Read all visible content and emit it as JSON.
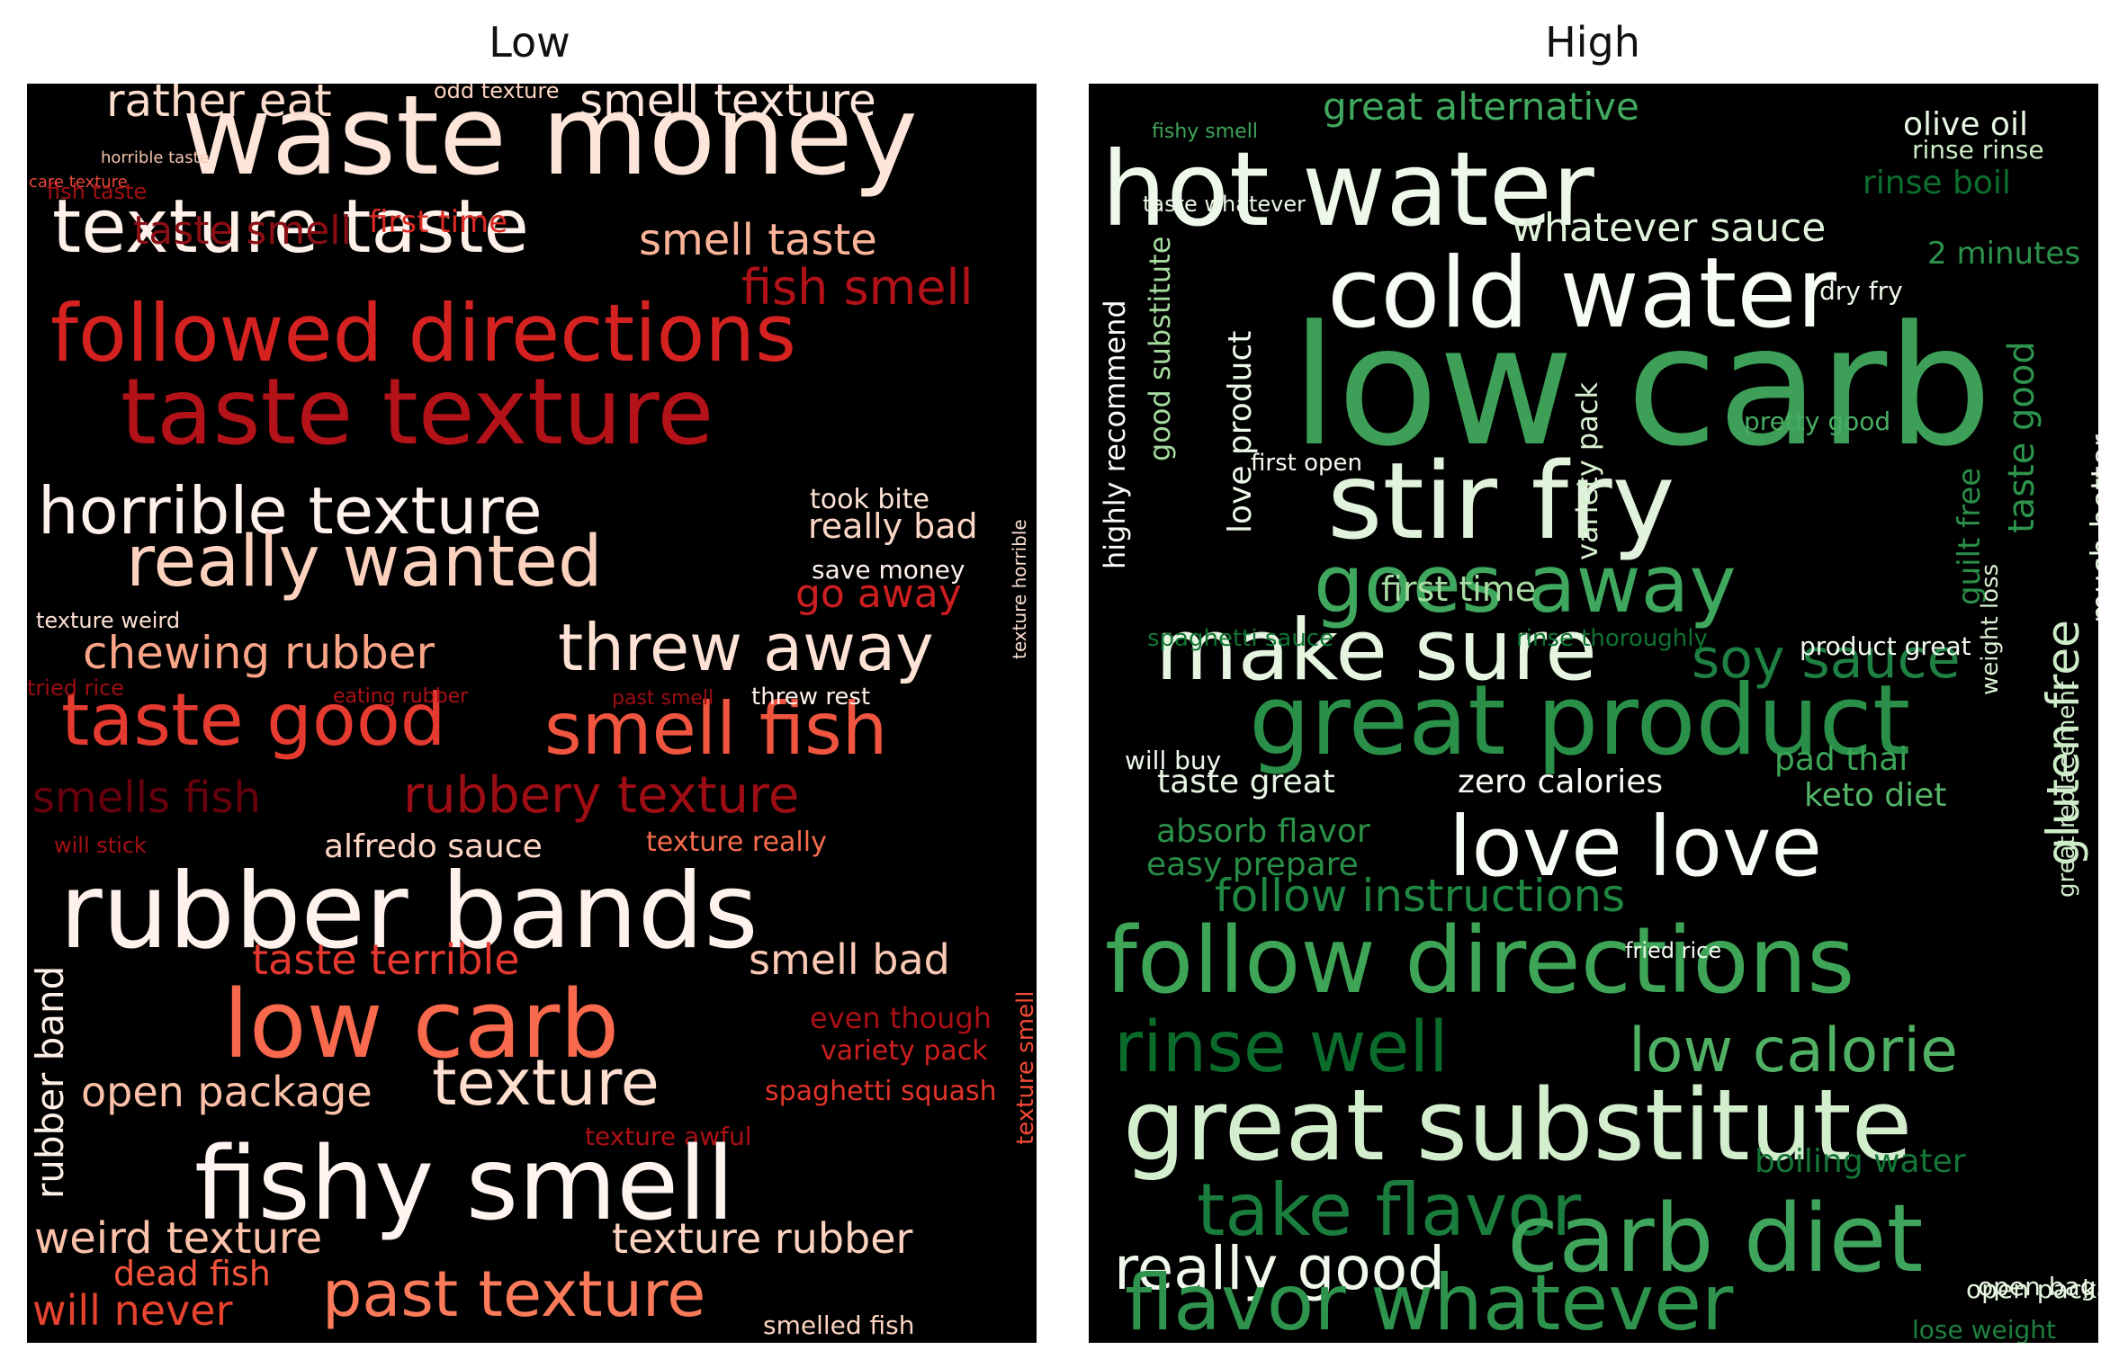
{
  "panels": [
    {
      "title": "Low"
    },
    {
      "title": "High"
    }
  ],
  "chart_data": [
    {
      "type": "wordcloud",
      "title": "Low",
      "colormap": "Reds",
      "background": "#000000",
      "words": [
        {
          "text": "waste money",
          "c": "#fde5d9"
        },
        {
          "text": "rather eat",
          "c": "#fcdccc"
        },
        {
          "text": "smell texture",
          "c": "#fde6dc"
        },
        {
          "text": "odd texture",
          "c": "#fcd3c1"
        },
        {
          "text": "texture taste",
          "c": "#fff1ea"
        },
        {
          "text": "smell taste",
          "c": "#fcb499"
        },
        {
          "text": "first time",
          "c": "#dc2a25"
        },
        {
          "text": "taste smell",
          "c": "#8a0f15"
        },
        {
          "text": "fish smell",
          "c": "#b11218"
        },
        {
          "text": "fish taste",
          "c": "#a30f15"
        },
        {
          "text": "horrible taste",
          "c": "#f4c4ae"
        },
        {
          "text": "care texture",
          "c": "#e8473b"
        },
        {
          "text": "followed directions",
          "c": "#d52221"
        },
        {
          "text": "taste texture",
          "c": "#b31218"
        },
        {
          "text": "horrible texture",
          "c": "#fff1eb"
        },
        {
          "text": "really wanted",
          "c": "#fcd2bf"
        },
        {
          "text": "took bite",
          "c": "#fde3d6"
        },
        {
          "text": "really bad",
          "c": "#fcd6c5"
        },
        {
          "text": "save money",
          "c": "#fff2ec"
        },
        {
          "text": "go away",
          "c": "#cd1e20"
        },
        {
          "text": "chewing rubber",
          "c": "#fca487"
        },
        {
          "text": "threw away",
          "c": "#fee2d5"
        },
        {
          "text": "texture weird",
          "c": "#fde2d4"
        },
        {
          "text": "taste good",
          "c": "#e43a2f"
        },
        {
          "text": "smell fish",
          "c": "#f0553f"
        },
        {
          "text": "threw rest",
          "c": "#fff0e9"
        },
        {
          "text": "eating rubber",
          "c": "#ac1117"
        },
        {
          "text": "past smell",
          "c": "#9c0d14"
        },
        {
          "text": "tried rice",
          "c": "#9b0d13"
        },
        {
          "text": "smells fish",
          "c": "#67000d"
        },
        {
          "text": "rubbery texture",
          "c": "#9d0d14"
        },
        {
          "text": "alfredo sauce",
          "c": "#fdd5c4"
        },
        {
          "text": "will stick",
          "c": "#a50f15"
        },
        {
          "text": "texture really",
          "c": "#f86c4e"
        },
        {
          "text": "rubber bands",
          "c": "#fff2ec"
        },
        {
          "text": "taste terrible",
          "c": "#e6382e"
        },
        {
          "text": "smell bad",
          "c": "#fcc9b5"
        },
        {
          "text": "low carb",
          "c": "#f8694d"
        },
        {
          "text": "even though",
          "c": "#a91016"
        },
        {
          "text": "variety pack",
          "c": "#ce1f20"
        },
        {
          "text": "open package",
          "c": "#fcc1a8"
        },
        {
          "text": "texture",
          "c": "#fedfd0"
        },
        {
          "text": "spaghetti squash",
          "c": "#e3342a"
        },
        {
          "text": "texture awful",
          "c": "#ab1016"
        },
        {
          "text": "fishy smell",
          "c": "#fff4ef"
        },
        {
          "text": "weird texture",
          "c": "#fcc2aa"
        },
        {
          "text": "texture rubber",
          "c": "#fdd2bf"
        },
        {
          "text": "dead fish",
          "c": "#f6553c"
        },
        {
          "text": "past texture",
          "c": "#fb7a5a"
        },
        {
          "text": "will never",
          "c": "#e5432f"
        },
        {
          "text": "smelled fish",
          "c": "#fcd4c1"
        },
        {
          "text": "rubber band",
          "c": "#fff0e8"
        },
        {
          "text": "texture horrible",
          "c": "#fde0d2"
        },
        {
          "text": "texture smell",
          "c": "#f34a36"
        }
      ]
    },
    {
      "type": "wordcloud",
      "title": "High",
      "colormap": "Greens",
      "background": "#000000",
      "words": [
        {
          "text": "fishy smell",
          "c": "#3fa55c"
        },
        {
          "text": "great alternative",
          "c": "#41a85f"
        },
        {
          "text": "hot water",
          "c": "#edf8ea"
        },
        {
          "text": "olive oil",
          "c": "#e9f7e5"
        },
        {
          "text": "rinse rinse",
          "c": "#cbebc5"
        },
        {
          "text": "rinse boil",
          "c": "#0d6f2e"
        },
        {
          "text": "taste whatever",
          "c": "#eaf7e6"
        },
        {
          "text": "whatever sauce",
          "c": "#dff3da"
        },
        {
          "text": "2 minutes",
          "c": "#2d924b"
        },
        {
          "text": "cold water",
          "c": "#f7fcf5"
        },
        {
          "text": "dry fry",
          "c": "#edf8ea"
        },
        {
          "text": "low carb",
          "c": "#3d9f58"
        },
        {
          "text": "stir fry",
          "c": "#e1f3dc"
        },
        {
          "text": "goes away",
          "c": "#3fa75e"
        },
        {
          "text": "make sure",
          "c": "#e5f5e0"
        },
        {
          "text": "soy sauce",
          "c": "#1e8143"
        },
        {
          "text": "product great",
          "c": "#f2faef"
        },
        {
          "text": "great product",
          "c": "#2a8f48"
        },
        {
          "text": "pretty good",
          "c": "#48ad63"
        },
        {
          "text": "gluten free",
          "c": "#cdecc7"
        },
        {
          "text": "guilt free",
          "c": "#2a8f48"
        },
        {
          "text": "taste good",
          "c": "#2e934c"
        },
        {
          "text": "taste great",
          "c": "#e8f6e3"
        },
        {
          "text": "zero calories",
          "c": "#f5fbf2"
        },
        {
          "text": "pad thai",
          "c": "#3ca558"
        },
        {
          "text": "keto diet",
          "c": "#54b468"
        },
        {
          "text": "absorb flavor",
          "c": "#2c9149"
        },
        {
          "text": "easy prepare",
          "c": "#288d46"
        },
        {
          "text": "love love",
          "c": "#f7fcf5"
        },
        {
          "text": "follow instructions",
          "c": "#1f8742"
        },
        {
          "text": "follow directions",
          "c": "#3ea557"
        },
        {
          "text": "rinse well",
          "c": "#0a6b2b"
        },
        {
          "text": "low calorie",
          "c": "#50b164"
        },
        {
          "text": "great substitute",
          "c": "#d3eecd"
        },
        {
          "text": "take flavor",
          "c": "#1a7c3d"
        },
        {
          "text": "boiling water",
          "c": "#157638"
        },
        {
          "text": "carb diet",
          "c": "#3fa55c"
        },
        {
          "text": "really good",
          "c": "#f0f9ec"
        },
        {
          "text": "flavor whatever",
          "c": "#2e934c"
        },
        {
          "text": "open package",
          "c": "#e5f5e0"
        },
        {
          "text": "first time",
          "c": "#aadda4"
        },
        {
          "text": "first open",
          "c": "#f4fbf1"
        },
        {
          "text": "spaghetti sauce",
          "c": "#117533"
        },
        {
          "text": "rinse thoroughly",
          "c": "#0f7233"
        },
        {
          "text": "fried rice",
          "c": "#f1faee"
        },
        {
          "text": "love product",
          "c": "#edf8ea"
        },
        {
          "text": "variety pack",
          "c": "#d6efd0"
        },
        {
          "text": "highly recommend",
          "c": "#f7fcf5"
        },
        {
          "text": "good substitute",
          "c": "#a5db9f"
        },
        {
          "text": "much better",
          "c": "#eaf7e6"
        },
        {
          "text": "weight loss",
          "c": "#d9f0d3"
        },
        {
          "text": "great replacement",
          "c": "#cfeccc"
        },
        {
          "text": "lose weight",
          "c": "#1e8041"
        },
        {
          "text": "will buy",
          "c": "#eef8eb"
        },
        {
          "text": "open bag",
          "c": "#e5f5e0"
        }
      ]
    }
  ]
}
